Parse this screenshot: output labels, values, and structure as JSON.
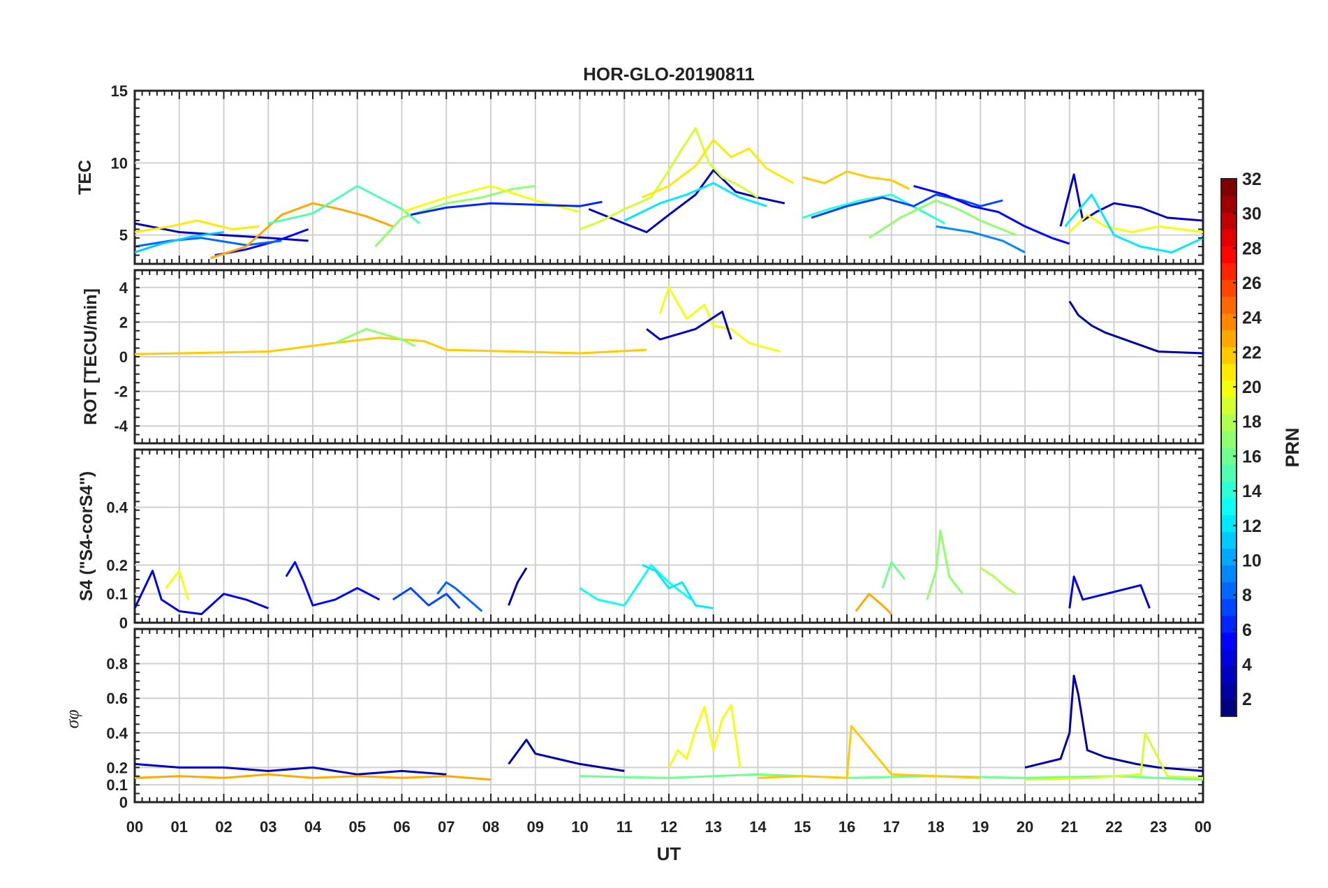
{
  "chart_data": {
    "type": "line",
    "title": "HOR-GLO-20190811",
    "xlabel": "UT",
    "x_ticks": [
      "00",
      "01",
      "02",
      "03",
      "04",
      "05",
      "06",
      "07",
      "08",
      "09",
      "10",
      "11",
      "12",
      "13",
      "14",
      "15",
      "16",
      "17",
      "18",
      "19",
      "20",
      "21",
      "22",
      "23",
      "00"
    ],
    "xlim": [
      0,
      24
    ],
    "grid": true,
    "colorbar": {
      "label": "PRN",
      "range": [
        1,
        32
      ],
      "ticks": [
        "2",
        "4",
        "6",
        "8",
        "10",
        "12",
        "14",
        "16",
        "18",
        "20",
        "22",
        "24",
        "26",
        "28",
        "30",
        "32"
      ],
      "colormap": "jet"
    },
    "panels": [
      {
        "ylabel": "TEC",
        "ylim": [
          3,
          15
        ],
        "yticks": [
          "5",
          "10",
          "15"
        ],
        "ytick_values": [
          5,
          10,
          15
        ],
        "series": [
          {
            "prn": 3,
            "x": [
              0,
              1,
              2,
              3,
              3.9
            ],
            "y": [
              5.8,
              5.2,
              5.0,
              4.8,
              4.6
            ]
          },
          {
            "prn": 5,
            "x": [
              1.8,
              2.5,
              3.2,
              3.9
            ],
            "y": [
              3.6,
              4.0,
              4.6,
              5.4
            ]
          },
          {
            "prn": 8,
            "x": [
              0,
              0.8,
              1.5,
              2.5,
              3.3
            ],
            "y": [
              4.2,
              4.6,
              4.8,
              4.3,
              4.6
            ]
          },
          {
            "prn": 11,
            "x": [
              0,
              0.6,
              1.3,
              2.0
            ],
            "y": [
              3.8,
              4.4,
              4.9,
              5.2
            ]
          },
          {
            "prn": 21,
            "x": [
              0,
              0.8,
              1.4,
              2.2,
              2.8
            ],
            "y": [
              5.2,
              5.6,
              6.0,
              5.4,
              5.6
            ]
          },
          {
            "prn": 23,
            "x": [
              1.7,
              2.5,
              3.3,
              4.0,
              4.6,
              5.2,
              5.8
            ],
            "y": [
              3.4,
              4.2,
              6.4,
              7.2,
              6.8,
              6.3,
              5.6
            ]
          },
          {
            "prn": 15,
            "x": [
              3.0,
              4.0,
              5.0,
              5.5,
              6.0,
              6.4
            ],
            "y": [
              5.8,
              6.5,
              8.4,
              7.6,
              6.8,
              5.8
            ]
          },
          {
            "prn": 17,
            "x": [
              5.4,
              6.0,
              7.0,
              7.8,
              8.5,
              9.0
            ],
            "y": [
              4.2,
              6.2,
              7.2,
              7.6,
              8.2,
              8.4
            ]
          },
          {
            "prn": 20,
            "x": [
              6.0,
              7.0,
              8.0,
              9.0,
              10.0
            ],
            "y": [
              6.6,
              7.6,
              8.4,
              7.4,
              6.6
            ]
          },
          {
            "prn": 6,
            "x": [
              6.2,
              7.0,
              8.0,
              9.0,
              10.0,
              10.5
            ],
            "y": [
              6.4,
              6.9,
              7.2,
              7.1,
              7.0,
              7.3
            ]
          },
          {
            "prn": 3,
            "x": [
              10.2,
              11.0,
              11.5,
              12.0,
              12.6,
              13.0,
              13.5,
              14.0,
              14.6
            ],
            "y": [
              6.8,
              5.8,
              5.2,
              6.4,
              7.8,
              9.5,
              8.0,
              7.6,
              7.2
            ]
          },
          {
            "prn": 19,
            "x": [
              10.0,
              10.5,
              11.0,
              11.6,
              12.0,
              12.3,
              12.6,
              12.9,
              13.2,
              13.6,
              14.0
            ],
            "y": [
              5.4,
              6.0,
              6.8,
              7.6,
              9.5,
              11.0,
              12.4,
              10.0,
              9.0,
              8.4,
              7.6
            ]
          },
          {
            "prn": 21,
            "x": [
              11.4,
              12.0,
              12.6,
              13.0,
              13.4,
              13.8,
              14.2,
              14.8
            ],
            "y": [
              7.6,
              8.4,
              9.8,
              11.6,
              10.4,
              11.0,
              9.6,
              8.6
            ]
          },
          {
            "prn": 12,
            "x": [
              11.0,
              11.8,
              12.4,
              13.0,
              13.6,
              14.2
            ],
            "y": [
              6.0,
              7.2,
              7.8,
              8.6,
              7.6,
              7.0
            ]
          },
          {
            "prn": 22,
            "x": [
              15.0,
              15.5,
              16.0,
              16.5,
              17.0,
              17.4
            ],
            "y": [
              9.0,
              8.6,
              9.4,
              9.0,
              8.8,
              8.2
            ]
          },
          {
            "prn": 14,
            "x": [
              15.0,
              15.6,
              16.3,
              17.0,
              17.6,
              18.2
            ],
            "y": [
              6.2,
              6.8,
              7.4,
              7.8,
              6.8,
              5.8
            ]
          },
          {
            "prn": 7,
            "x": [
              15.2,
              16.0,
              16.8,
              17.5,
              18.0,
              18.6,
              19.0,
              19.5
            ],
            "y": [
              6.2,
              7.0,
              7.6,
              7.0,
              7.8,
              7.4,
              7.0,
              7.4
            ]
          },
          {
            "prn": 5,
            "x": [
              17.5,
              18.2,
              18.8,
              19.4,
              20.0,
              20.6,
              21.0
            ],
            "y": [
              8.4,
              7.8,
              7.0,
              6.6,
              5.6,
              4.8,
              4.4
            ]
          },
          {
            "prn": 17,
            "x": [
              16.5,
              17.2,
              18.0,
              18.5,
              19.0,
              19.8
            ],
            "y": [
              4.8,
              6.2,
              7.4,
              6.8,
              6.0,
              5.0
            ]
          },
          {
            "prn": 9,
            "x": [
              18.0,
              18.8,
              19.5,
              20.0
            ],
            "y": [
              5.6,
              5.2,
              4.6,
              3.8
            ]
          },
          {
            "prn": 3,
            "x": [
              20.8,
              21.1,
              21.3,
              21.6,
              22.0,
              22.6,
              23.2,
              24.0
            ],
            "y": [
              5.6,
              9.2,
              6.0,
              6.6,
              7.2,
              6.9,
              6.2,
              6.0
            ]
          },
          {
            "prn": 20,
            "x": [
              21.0,
              21.4,
              21.8,
              22.4,
              23.0,
              24.0
            ],
            "y": [
              5.2,
              6.4,
              5.6,
              5.2,
              5.6,
              5.2
            ]
          },
          {
            "prn": 12,
            "x": [
              20.9,
              21.5,
              22.0,
              22.6,
              23.3,
              24.0
            ],
            "y": [
              5.6,
              7.8,
              5.0,
              4.2,
              3.8,
              4.8
            ]
          }
        ]
      },
      {
        "ylabel": "ROT [TECU/min]",
        "ylim": [
          -5,
          5
        ],
        "yticks": [
          "4",
          "2",
          "0",
          "-2",
          "-4"
        ],
        "ytick_values": [
          4,
          2,
          0,
          -2,
          -4
        ],
        "series": [
          {
            "prn": 22,
            "x": [
              0,
              3,
              4.5,
              5.5,
              6.5,
              7,
              10,
              11.5
            ],
            "y": [
              0.15,
              0.3,
              0.8,
              1.1,
              0.9,
              0.4,
              0.2,
              0.4
            ]
          },
          {
            "prn": 17,
            "x": [
              4.5,
              5.2,
              6.0,
              6.3
            ],
            "y": [
              0.8,
              1.6,
              1.0,
              0.6
            ]
          },
          {
            "prn": 20,
            "x": [
              11.8,
              12.0,
              12.4,
              12.8,
              13.0,
              13.4,
              13.8,
              14.5
            ],
            "y": [
              2.5,
              4.0,
              2.2,
              3.0,
              1.8,
              1.6,
              0.8,
              0.3
            ]
          },
          {
            "prn": 3,
            "x": [
              11.5,
              11.8,
              12.6,
              13.2,
              13.4
            ],
            "y": [
              1.6,
              1.0,
              1.6,
              2.6,
              1.0
            ]
          },
          {
            "prn": 2,
            "x": [
              21.0,
              21.2,
              21.5,
              21.8,
              23.0,
              24.0
            ],
            "y": [
              3.2,
              2.4,
              1.8,
              1.4,
              0.3,
              0.2
            ]
          }
        ]
      },
      {
        "ylabel": "S4 (\"S4-corS4\")",
        "ylim": [
          0,
          0.6
        ],
        "yticks": [
          "0",
          "0.1",
          "0.2",
          "0.4"
        ],
        "ytick_values": [
          0,
          0.1,
          0.2,
          0.4
        ],
        "series": [
          {
            "prn": 4,
            "x": [
              0,
              0.4,
              0.6,
              1.0,
              1.5,
              2.0,
              2.5,
              3.0
            ],
            "y": [
              0.05,
              0.18,
              0.08,
              0.04,
              0.03,
              0.1,
              0.08,
              0.05
            ]
          },
          {
            "prn": 20,
            "x": [
              0.7,
              0.9,
              1.0,
              1.2
            ],
            "y": [
              0.12,
              0.16,
              0.18,
              0.08
            ]
          },
          {
            "prn": 5,
            "x": [
              3.4,
              3.6,
              3.8,
              4.0,
              4.5,
              5.0,
              5.5
            ],
            "y": [
              0.16,
              0.21,
              0.14,
              0.06,
              0.08,
              0.12,
              0.08
            ]
          },
          {
            "prn": 7,
            "x": [
              5.8,
              6.2,
              6.6,
              7.0,
              7.3
            ],
            "y": [
              0.08,
              0.12,
              0.06,
              0.1,
              0.05
            ]
          },
          {
            "prn": 8,
            "x": [
              6.8,
              7.0,
              7.2,
              7.5,
              7.8
            ],
            "y": [
              0.1,
              0.14,
              0.12,
              0.08,
              0.04
            ]
          },
          {
            "prn": 2,
            "x": [
              8.4,
              8.6,
              8.8
            ],
            "y": [
              0.06,
              0.14,
              0.19
            ]
          },
          {
            "prn": 13,
            "x": [
              10.0,
              10.4,
              11.0,
              11.6,
              12.0,
              12.5
            ],
            "y": [
              0.12,
              0.08,
              0.06,
              0.2,
              0.14,
              0.08
            ]
          },
          {
            "prn": 12,
            "x": [
              11.4,
              11.7,
              12.0,
              12.3,
              12.6,
              13.0
            ],
            "y": [
              0.2,
              0.18,
              0.12,
              0.14,
              0.06,
              0.05
            ]
          },
          {
            "prn": 23,
            "x": [
              16.2,
              16.5,
              16.8,
              17.0
            ],
            "y": [
              0.04,
              0.1,
              0.06,
              0.03
            ]
          },
          {
            "prn": 16,
            "x": [
              16.8,
              17.0,
              17.3
            ],
            "y": [
              0.12,
              0.21,
              0.15
            ]
          },
          {
            "prn": 17,
            "x": [
              17.8,
              18.0,
              18.1,
              18.3,
              18.6
            ],
            "y": [
              0.08,
              0.18,
              0.32,
              0.16,
              0.1
            ]
          },
          {
            "prn": 18,
            "x": [
              19.0,
              19.3,
              19.6,
              19.8
            ],
            "y": [
              0.19,
              0.16,
              0.12,
              0.1
            ]
          },
          {
            "prn": 4,
            "x": [
              21.0,
              21.1,
              21.3,
              22.6,
              22.8
            ],
            "y": [
              0.05,
              0.16,
              0.08,
              0.13,
              0.05
            ]
          }
        ]
      },
      {
        "ylabel": "σφ",
        "ylim": [
          0,
          1
        ],
        "yticks": [
          "0",
          "0.1",
          "0.2",
          "0.4",
          "0.6",
          "0.8"
        ],
        "ytick_values": [
          0,
          0.1,
          0.2,
          0.4,
          0.6,
          0.8
        ],
        "series": [
          {
            "prn": 3,
            "x": [
              0,
              1,
              2,
              3,
              4,
              5,
              6,
              7
            ],
            "y": [
              0.22,
              0.2,
              0.2,
              0.18,
              0.2,
              0.16,
              0.18,
              0.16
            ]
          },
          {
            "prn": 23,
            "x": [
              0,
              1,
              2,
              3,
              4,
              5,
              6,
              7,
              8
            ],
            "y": [
              0.14,
              0.15,
              0.14,
              0.16,
              0.14,
              0.15,
              0.14,
              0.15,
              0.13
            ]
          },
          {
            "prn": 2,
            "x": [
              8.4,
              8.8,
              9.0,
              9.5,
              10.0,
              10.5,
              11.0
            ],
            "y": [
              0.22,
              0.36,
              0.28,
              0.25,
              0.22,
              0.2,
              0.18
            ]
          },
          {
            "prn": 20,
            "x": [
              12.0,
              12.2,
              12.4,
              12.6,
              12.8,
              13.0,
              13.2,
              13.4,
              13.6
            ],
            "y": [
              0.2,
              0.3,
              0.25,
              0.42,
              0.55,
              0.3,
              0.48,
              0.56,
              0.2
            ]
          },
          {
            "prn": 16,
            "x": [
              10.0,
              12.0,
              14.0,
              16.0,
              18.0,
              20.0,
              22.0,
              24.0
            ],
            "y": [
              0.15,
              0.14,
              0.16,
              0.14,
              0.15,
              0.14,
              0.15,
              0.13
            ]
          },
          {
            "prn": 22,
            "x": [
              14.0,
              15.0,
              16.0,
              16.1,
              17.0,
              18.0,
              19.0
            ],
            "y": [
              0.14,
              0.15,
              0.14,
              0.44,
              0.16,
              0.15,
              0.14
            ]
          },
          {
            "prn": 2,
            "x": [
              20.0,
              20.8,
              21.0,
              21.1,
              21.2,
              21.4,
              21.8,
              22.5,
              23.0,
              24.0
            ],
            "y": [
              0.2,
              0.25,
              0.4,
              0.73,
              0.62,
              0.3,
              0.26,
              0.22,
              0.2,
              0.18
            ]
          },
          {
            "prn": 19,
            "x": [
              20.0,
              21.5,
              22.6,
              22.7,
              23.2,
              24.0
            ],
            "y": [
              0.13,
              0.14,
              0.16,
              0.4,
              0.15,
              0.14
            ]
          }
        ]
      }
    ]
  }
}
